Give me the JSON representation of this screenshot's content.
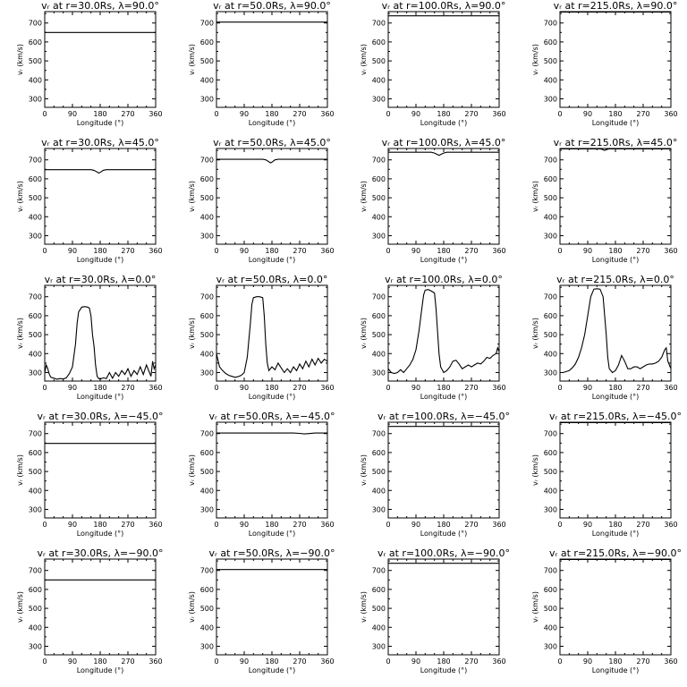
{
  "chart_data": {
    "type": "line",
    "xlabel": "Longitude  (°)",
    "ylabel": "vᵣ (km/s)",
    "xlim": [
      0,
      360
    ],
    "ylim": [
      255,
      760
    ],
    "xticks": [
      0,
      90,
      180,
      270,
      360
    ],
    "xtick_labels": [
      "0",
      "90",
      "180",
      "270",
      "360"
    ],
    "yticks": [
      300,
      400,
      500,
      600,
      700
    ],
    "ytick_labels": [
      "300",
      "400",
      "500",
      "600",
      "700"
    ],
    "grid": false,
    "legend": "none",
    "rows": 5,
    "cols": 4,
    "panels": [
      {
        "title": "vᵣ at r=30.0Rs, λ=90.0°",
        "x": [
          0,
          360
        ],
        "y": [
          650,
          650
        ]
      },
      {
        "title": "vᵣ at r=50.0Rs, λ=90.0°",
        "x": [
          0,
          360
        ],
        "y": [
          705,
          705
        ]
      },
      {
        "title": "vᵣ at r=100.0Rs, λ=90.0°",
        "x": [
          0,
          360
        ],
        "y": [
          738,
          738
        ]
      },
      {
        "title": "vᵣ at r=215.0Rs, λ=90.0°",
        "x": [
          0,
          360
        ],
        "y": [
          758,
          758
        ]
      },
      {
        "title": "vᵣ at r=30.0Rs, λ=45.0°",
        "x": [
          0,
          150,
          160,
          170,
          175,
          180,
          190,
          200,
          360
        ],
        "y": [
          648,
          648,
          645,
          636,
          630,
          634,
          645,
          648,
          648
        ]
      },
      {
        "title": "vᵣ at r=50.0Rs, λ=45.0°",
        "x": [
          0,
          150,
          160,
          170,
          175,
          180,
          190,
          200,
          360
        ],
        "y": [
          703,
          703,
          700,
          690,
          684,
          688,
          700,
          703,
          703
        ]
      },
      {
        "title": "vᵣ at r=100.0Rs, λ=45.0°",
        "x": [
          0,
          140,
          150,
          160,
          165,
          170,
          180,
          190,
          360
        ],
        "y": [
          740,
          740,
          736,
          728,
          724,
          728,
          736,
          740,
          740
        ]
      },
      {
        "title": "vᵣ at r=215.0Rs, λ=45.0°",
        "x": [
          0,
          130,
          140,
          145,
          150,
          160,
          360
        ],
        "y": [
          758,
          758,
          754,
          750,
          754,
          758,
          758
        ]
      },
      {
        "title": "vᵣ at r=30.0Rs, λ=0.0°",
        "x": [
          0,
          5,
          10,
          15,
          20,
          30,
          40,
          50,
          60,
          70,
          80,
          90,
          100,
          105,
          110,
          120,
          130,
          140,
          145,
          150,
          155,
          160,
          165,
          170,
          175,
          180,
          190,
          200,
          210,
          220,
          230,
          240,
          250,
          260,
          270,
          280,
          290,
          300,
          310,
          320,
          330,
          340,
          345,
          350,
          355,
          360
        ],
        "y": [
          300,
          340,
          320,
          290,
          275,
          270,
          265,
          268,
          266,
          272,
          295,
          330,
          450,
          560,
          620,
          645,
          648,
          645,
          640,
          600,
          500,
          440,
          340,
          280,
          268,
          265,
          272,
          268,
          300,
          270,
          300,
          280,
          310,
          290,
          320,
          280,
          310,
          290,
          330,
          290,
          340,
          300,
          280,
          360,
          320,
          340
        ]
      },
      {
        "title": "vᵣ at r=50.0Rs, λ=0.0°",
        "x": [
          0,
          10,
          20,
          30,
          40,
          50,
          60,
          70,
          80,
          90,
          100,
          110,
          115,
          120,
          130,
          140,
          150,
          155,
          160,
          165,
          170,
          180,
          190,
          200,
          210,
          220,
          230,
          240,
          250,
          260,
          270,
          280,
          290,
          300,
          310,
          320,
          330,
          340,
          350,
          360
        ],
        "y": [
          400,
          330,
          310,
          295,
          285,
          280,
          275,
          278,
          285,
          300,
          380,
          560,
          660,
          695,
          700,
          700,
          695,
          600,
          450,
          350,
          310,
          330,
          315,
          350,
          325,
          300,
          320,
          300,
          330,
          310,
          345,
          320,
          360,
          330,
          370,
          340,
          375,
          350,
          370,
          360
        ]
      },
      {
        "title": "vᵣ at r=100.0Rs, λ=0.0°",
        "x": [
          0,
          10,
          20,
          30,
          40,
          50,
          60,
          70,
          80,
          90,
          100,
          110,
          115,
          120,
          130,
          140,
          150,
          155,
          160,
          165,
          170,
          180,
          190,
          200,
          210,
          220,
          230,
          240,
          250,
          260,
          270,
          280,
          290,
          300,
          310,
          320,
          330,
          340,
          350,
          355,
          360
        ],
        "y": [
          320,
          300,
          295,
          300,
          315,
          300,
          320,
          340,
          370,
          420,
          520,
          650,
          710,
          735,
          738,
          730,
          720,
          640,
          520,
          400,
          330,
          300,
          310,
          330,
          360,
          365,
          345,
          320,
          330,
          340,
          330,
          340,
          350,
          345,
          360,
          380,
          375,
          390,
          400,
          430,
          410
        ]
      },
      {
        "title": "vᵣ at r=215.0Rs, λ=0.0°",
        "x": [
          0,
          10,
          20,
          30,
          40,
          50,
          60,
          70,
          80,
          90,
          100,
          110,
          120,
          130,
          140,
          150,
          155,
          160,
          170,
          180,
          190,
          200,
          210,
          220,
          230,
          240,
          250,
          260,
          270,
          280,
          290,
          300,
          310,
          320,
          330,
          340,
          345,
          350,
          360
        ],
        "y": [
          300,
          300,
          305,
          310,
          325,
          345,
          380,
          430,
          500,
          600,
          700,
          740,
          742,
          740,
          700,
          500,
          380,
          320,
          300,
          310,
          340,
          390,
          360,
          320,
          320,
          330,
          330,
          320,
          330,
          340,
          345,
          345,
          350,
          360,
          380,
          420,
          430,
          360,
          320
        ]
      },
      {
        "title": "vᵣ at r=30.0Rs, λ=−45.0°",
        "x": [
          0,
          360
        ],
        "y": [
          648,
          648
        ]
      },
      {
        "title": "vᵣ at r=50.0Rs, λ=−45.0°",
        "x": [
          0,
          250,
          270,
          285,
          300,
          320,
          360
        ],
        "y": [
          703,
          703,
          701,
          698,
          700,
          703,
          703
        ]
      },
      {
        "title": "vᵣ at r=100.0Rs, λ=−45.0°",
        "x": [
          0,
          360
        ],
        "y": [
          738,
          738
        ]
      },
      {
        "title": "vᵣ at r=215.0Rs, λ=−45.0°",
        "x": [
          0,
          360
        ],
        "y": [
          758,
          758
        ]
      },
      {
        "title": "vᵣ at r=30.0Rs, λ=−90.0°",
        "x": [
          0,
          360
        ],
        "y": [
          650,
          650
        ]
      },
      {
        "title": "vᵣ at r=50.0Rs, λ=−90.0°",
        "x": [
          0,
          360
        ],
        "y": [
          705,
          705
        ]
      },
      {
        "title": "vᵣ at r=100.0Rs, λ=−90.0°",
        "x": [
          0,
          360
        ],
        "y": [
          738,
          738
        ]
      },
      {
        "title": "vᵣ at r=215.0Rs, λ=−90.0°",
        "x": [
          0,
          360
        ],
        "y": [
          758,
          758
        ]
      }
    ]
  }
}
